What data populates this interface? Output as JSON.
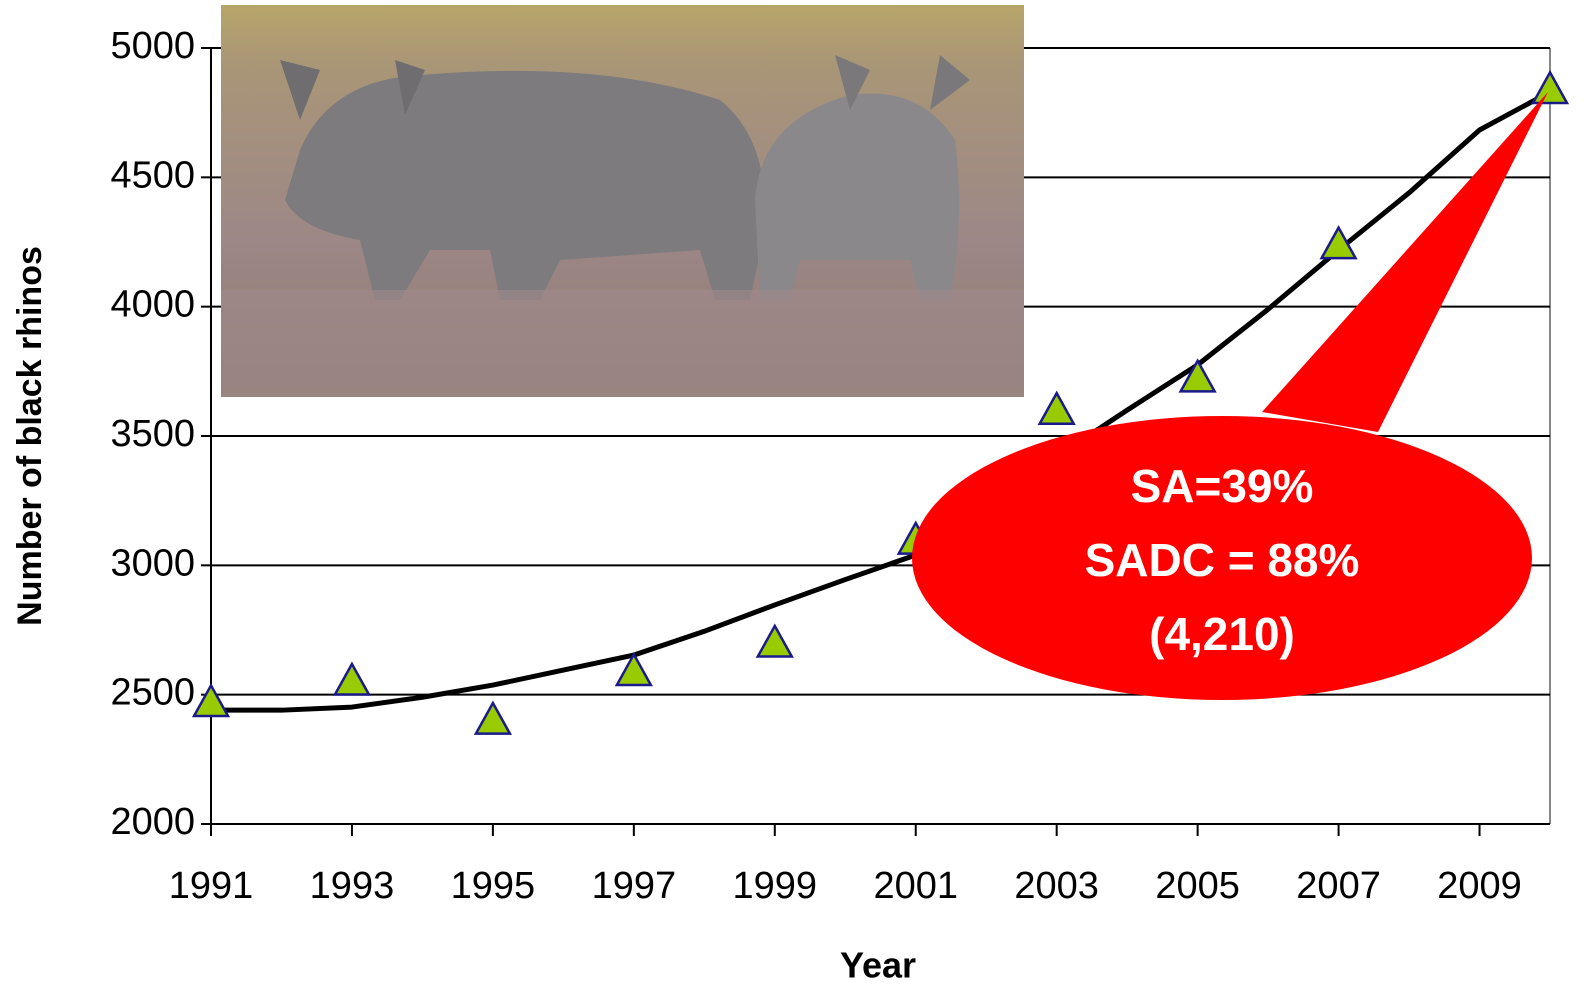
{
  "chart_data": {
    "type": "line",
    "x_label": "Year",
    "y_label": "Number of black rhinos",
    "x": [
      1991,
      1992,
      1993,
      1994,
      1995,
      1996,
      1997,
      1998,
      1999,
      2000,
      2001,
      2002,
      2003,
      2004,
      2005,
      2006,
      2007,
      2008,
      2009,
      2010
    ],
    "series": [
      {
        "color": "#000000",
        "marker": "none",
        "values": [
          2440,
          2440,
          2452,
          2490,
          2537,
          2595,
          2653,
          2745,
          2847,
          2945,
          3040,
          3230,
          3420,
          3600,
          3775,
          3990,
          4219,
          4440,
          4683,
          4830
        ]
      },
      {
        "color": "#99cc00",
        "marker": "triangle",
        "values": [
          2470,
          null,
          2553,
          null,
          2402,
          null,
          2590,
          null,
          2700,
          null,
          3098,
          null,
          3600,
          null,
          3725,
          null,
          4240,
          null,
          null,
          4840
        ]
      }
    ],
    "xlim": [
      1991,
      2010
    ],
    "xticks": [
      1991,
      1993,
      1995,
      1997,
      1999,
      2001,
      2003,
      2005,
      2007,
      2009
    ],
    "ylim": [
      2000,
      5000
    ],
    "yticks": [
      2000,
      2500,
      3000,
      3500,
      4000,
      4500,
      5000
    ],
    "grid": true,
    "annotation": [
      "SA=39%",
      "SADC = 88%",
      "(4,210)"
    ]
  }
}
